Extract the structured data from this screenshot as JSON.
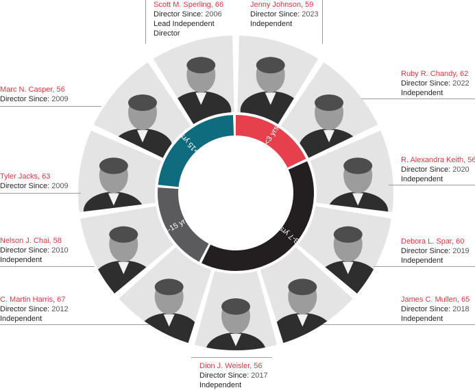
{
  "tenure_ring": [
    {
      "label": ">15 yrs",
      "color": "#0f6b7e"
    },
    {
      "label": "<3 yrs",
      "color": "#e5404b"
    },
    {
      "label": "3-7 yrs",
      "color": "#231f20"
    },
    {
      "label": "8-15 yrs",
      "color": "#5b5b5d"
    }
  ],
  "directors": [
    {
      "id": "sperling",
      "name": "Scott M. Sperling, 66",
      "since_label": "Director Since:",
      "since": "2006",
      "status": "Lead Independent",
      "status2": "Director"
    },
    {
      "id": "johnson",
      "name": "Jenny Johnson, 59",
      "since_label": "Director Since:",
      "since": "2023",
      "status": "Independent"
    },
    {
      "id": "chandy",
      "name": "Ruby R. Chandy, 62",
      "since_label": "Director Since:",
      "since": "2022",
      "status": "Independent"
    },
    {
      "id": "keith",
      "name": "R. Alexandra Keith, 56",
      "since_label": "Director Since:",
      "since": "2020",
      "status": "Independent"
    },
    {
      "id": "spar",
      "name": "Debora L. Spar, 60",
      "since_label": "Director Since:",
      "since": " 2019",
      "status": "Independent"
    },
    {
      "id": "mullen",
      "name": "James C. Mullen, 65",
      "since_label": "Director Since:",
      "since": "2018",
      "status": "Independent"
    },
    {
      "id": "weisler",
      "name": "Dion J. Weisler, 56",
      "since_label": "Director Since:",
      "since": "2017",
      "status": "Independent"
    },
    {
      "id": "harris",
      "name": "C. Martin Harris, 67",
      "since_label": "Director Since:",
      "since": "2012",
      "status": "Independent"
    },
    {
      "id": "chai",
      "name": "Nelson J. Chai, 58",
      "since_label": "Director Since:",
      "since": "2010",
      "status": "Independent"
    },
    {
      "id": "jacks",
      "name": "Tyler Jacks, 63",
      "since_label": "Director Since:",
      "since": "2009"
    },
    {
      "id": "casper",
      "name": "Marc N. Casper, 56",
      "since_label": "Director Since:",
      "since": "2009"
    }
  ]
}
